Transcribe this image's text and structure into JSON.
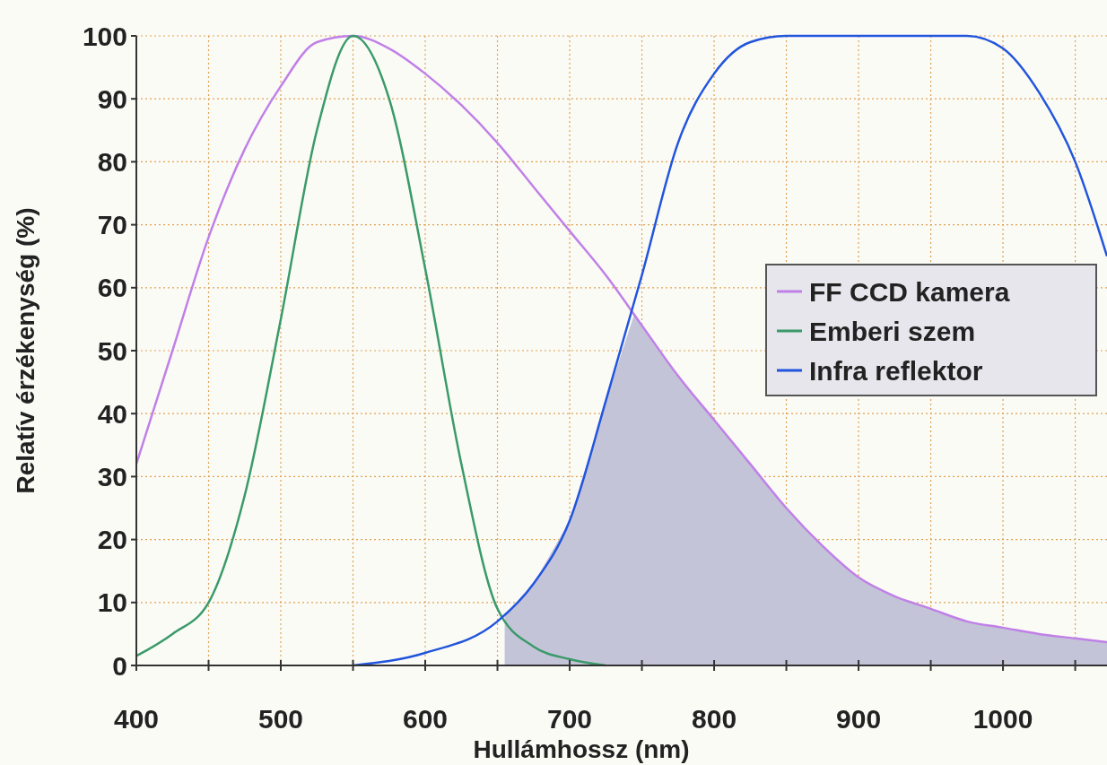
{
  "chart_data": {
    "type": "line",
    "xlabel": "Hullámhossz (nm)",
    "ylabel": "Relatív érzékenység (%)",
    "xlim": [
      400,
      1072
    ],
    "ylim": [
      0,
      100
    ],
    "xticks": [
      400,
      {
        "value": 450,
        "label": null
      },
      500,
      {
        "value": 550,
        "label": null
      },
      600,
      {
        "value": 650,
        "label": null
      },
      700,
      {
        "value": 750,
        "label": null
      },
      800,
      {
        "value": 850,
        "label": null
      },
      900,
      {
        "value": 950,
        "label": null
      },
      1000,
      {
        "value": 1050,
        "label": null
      }
    ],
    "yticks": [
      0,
      10,
      20,
      30,
      40,
      50,
      60,
      70,
      80,
      90,
      100
    ],
    "grid": true,
    "legend": "right",
    "series": [
      {
        "type": "area",
        "color": "#c4c4d8",
        "x": [
          655,
          675,
          700,
          725,
          745,
          750,
          775,
          800,
          825,
          850,
          875,
          900,
          925,
          950,
          975,
          1000,
          1025,
          1050,
          1072
        ],
        "values": [
          8,
          13,
          23,
          42,
          56,
          54,
          46,
          39,
          32,
          25,
          19,
          14,
          11,
          9,
          7,
          6,
          5,
          4.3,
          3.7
        ]
      },
      {
        "name": "FF CCD kamera",
        "color": "#c080e8",
        "x": [
          400,
          425,
          450,
          475,
          500,
          525,
          550,
          575,
          600,
          625,
          650,
          675,
          700,
          725,
          750,
          775,
          800,
          825,
          850,
          875,
          900,
          925,
          950,
          975,
          1000,
          1025,
          1050,
          1072
        ],
        "values": [
          32,
          50,
          68,
          82,
          92,
          99,
          100,
          98,
          94,
          89,
          83,
          76,
          69,
          62,
          54,
          46,
          39,
          32,
          25,
          19,
          14,
          11,
          9,
          7,
          6,
          5,
          4.3,
          3.7
        ]
      },
      {
        "name": "Emberi szem",
        "color": "#3a9a6a",
        "x": [
          400,
          425,
          450,
          475,
          500,
          525,
          550,
          575,
          600,
          625,
          650,
          675,
          700,
          725
        ],
        "values": [
          1.5,
          5,
          10,
          27,
          55,
          85,
          100,
          90,
          63,
          32,
          9,
          3,
          1,
          0
        ]
      },
      {
        "name": "Infra reflektor",
        "color": "#2255dd",
        "x": [
          550,
          600,
          650,
          675,
          700,
          725,
          750,
          775,
          800,
          825,
          850,
          900,
          950,
          975,
          1000,
          1025,
          1050,
          1072
        ],
        "values": [
          0,
          2,
          7,
          13,
          23,
          42,
          62,
          83,
          94,
          99,
          100,
          100,
          100,
          100,
          98,
          91,
          80,
          65
        ]
      }
    ]
  }
}
